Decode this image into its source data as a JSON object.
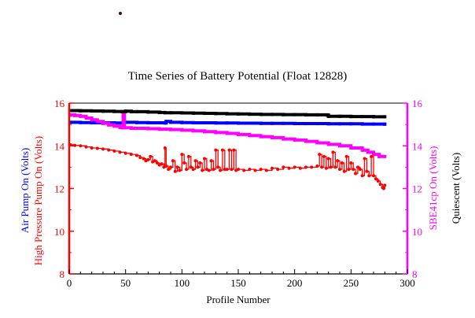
{
  "chart_data": {
    "type": "line",
    "title": "Time Series of Battery Potential (Float 12828)",
    "xlabel": "Profile Number",
    "xlim": [
      0,
      300
    ],
    "ylim": [
      8,
      16
    ],
    "x_ticks": [
      "0",
      "50",
      "100",
      "150",
      "200",
      "250",
      "300"
    ],
    "y_ticks": [
      "8",
      "10",
      "12",
      "14",
      "16"
    ],
    "left_axis_labels": [
      {
        "text": "Air Pump On (Volts)",
        "color": "#0000ff"
      },
      {
        "text": "High Pressure Pump On (Volts)",
        "color": "#ff0000"
      }
    ],
    "right_axis_labels": [
      {
        "text": "SBE41cp On (Volts)",
        "color": "#ff00ff"
      },
      {
        "text": "Quiescent (Volts)",
        "color": "#000000"
      }
    ],
    "axis_colors": {
      "left": "#ff0000",
      "right": "#ff00ff"
    },
    "grid": false,
    "series": [
      {
        "color": "#000000",
        "marker": "square",
        "points": [
          [
            1,
            15.65
          ],
          [
            10,
            15.64
          ],
          [
            20,
            15.63
          ],
          [
            30,
            15.62
          ],
          [
            40,
            15.61
          ],
          [
            47,
            15.6
          ],
          [
            50,
            15.62
          ],
          [
            55,
            15.6
          ],
          [
            60,
            15.6
          ],
          [
            70,
            15.58
          ],
          [
            80,
            15.56
          ],
          [
            85,
            15.55
          ],
          [
            90,
            15.55
          ],
          [
            100,
            15.54
          ],
          [
            110,
            15.53
          ],
          [
            120,
            15.52
          ],
          [
            130,
            15.51
          ],
          [
            140,
            15.5
          ],
          [
            150,
            15.49
          ],
          [
            160,
            15.48
          ],
          [
            170,
            15.47
          ],
          [
            180,
            15.47
          ],
          [
            190,
            15.46
          ],
          [
            200,
            15.46
          ],
          [
            210,
            15.45
          ],
          [
            220,
            15.45
          ],
          [
            229,
            15.44
          ],
          [
            230,
            15.38
          ],
          [
            240,
            15.38
          ],
          [
            250,
            15.37
          ],
          [
            260,
            15.37
          ],
          [
            270,
            15.36
          ],
          [
            280,
            15.36
          ]
        ]
      },
      {
        "color": "#0000ff",
        "marker": "square",
        "points": [
          [
            1,
            15.1
          ],
          [
            10,
            15.09
          ],
          [
            20,
            15.08
          ],
          [
            30,
            15.08
          ],
          [
            40,
            15.07
          ],
          [
            47,
            15.07
          ],
          [
            48,
            15.4
          ],
          [
            49,
            15.1
          ],
          [
            50,
            15.1
          ],
          [
            60,
            15.09
          ],
          [
            70,
            15.08
          ],
          [
            80,
            15.08
          ],
          [
            85,
            15.07
          ],
          [
            86,
            15.14
          ],
          [
            90,
            15.1
          ],
          [
            100,
            15.09
          ],
          [
            110,
            15.08
          ],
          [
            120,
            15.08
          ],
          [
            130,
            15.07
          ],
          [
            140,
            15.07
          ],
          [
            150,
            15.06
          ],
          [
            160,
            15.06
          ],
          [
            170,
            15.05
          ],
          [
            180,
            15.05
          ],
          [
            190,
            15.05
          ],
          [
            200,
            15.04
          ],
          [
            210,
            15.04
          ],
          [
            220,
            15.04
          ],
          [
            230,
            15.03
          ],
          [
            240,
            15.03
          ],
          [
            250,
            15.03
          ],
          [
            260,
            15.02
          ],
          [
            270,
            15.02
          ],
          [
            280,
            15.01
          ]
        ]
      },
      {
        "color": "#ff00ff",
        "marker": "square",
        "points": [
          [
            1,
            15.45
          ],
          [
            5,
            15.42
          ],
          [
            10,
            15.38
          ],
          [
            15,
            15.3
          ],
          [
            20,
            15.22
          ],
          [
            25,
            15.14
          ],
          [
            30,
            15.05
          ],
          [
            35,
            14.98
          ],
          [
            40,
            14.92
          ],
          [
            45,
            14.86
          ],
          [
            47,
            14.85
          ],
          [
            48,
            15.45
          ],
          [
            49,
            14.85
          ],
          [
            55,
            14.82
          ],
          [
            60,
            14.82
          ],
          [
            70,
            14.8
          ],
          [
            80,
            14.78
          ],
          [
            90,
            14.76
          ],
          [
            100,
            14.73
          ],
          [
            110,
            14.7
          ],
          [
            120,
            14.66
          ],
          [
            130,
            14.62
          ],
          [
            140,
            14.58
          ],
          [
            150,
            14.53
          ],
          [
            160,
            14.48
          ],
          [
            170,
            14.43
          ],
          [
            180,
            14.38
          ],
          [
            190,
            14.32
          ],
          [
            200,
            14.27
          ],
          [
            210,
            14.21
          ],
          [
            220,
            14.14
          ],
          [
            230,
            14.07
          ],
          [
            240,
            14.0
          ],
          [
            250,
            13.9
          ],
          [
            260,
            13.8
          ],
          [
            265,
            13.7
          ],
          [
            270,
            13.6
          ],
          [
            275,
            13.5
          ],
          [
            280,
            13.5
          ]
        ]
      },
      {
        "color": "#ff0000",
        "marker": "circle",
        "points": [
          [
            1,
            14.05
          ],
          [
            5,
            14.02
          ],
          [
            10,
            14.0
          ],
          [
            15,
            13.95
          ],
          [
            20,
            13.9
          ],
          [
            25,
            13.88
          ],
          [
            30,
            13.85
          ],
          [
            35,
            13.8
          ],
          [
            40,
            13.75
          ],
          [
            45,
            13.7
          ],
          [
            50,
            13.65
          ],
          [
            55,
            13.6
          ],
          [
            60,
            13.55
          ],
          [
            63,
            13.45
          ],
          [
            66,
            13.4
          ],
          [
            68,
            13.3
          ],
          [
            70,
            13.35
          ],
          [
            72,
            13.5
          ],
          [
            74,
            13.25
          ],
          [
            76,
            13.3
          ],
          [
            78,
            13.2
          ],
          [
            80,
            13.1
          ],
          [
            82,
            13.15
          ],
          [
            84,
            13.0
          ],
          [
            85,
            13.9
          ],
          [
            86,
            13.05
          ],
          [
            88,
            12.9
          ],
          [
            90,
            13.0
          ],
          [
            92,
            13.3
          ],
          [
            94,
            12.8
          ],
          [
            96,
            13.0
          ],
          [
            98,
            12.85
          ],
          [
            100,
            13.6
          ],
          [
            102,
            13.2
          ],
          [
            104,
            12.9
          ],
          [
            106,
            13.5
          ],
          [
            108,
            13.0
          ],
          [
            110,
            12.9
          ],
          [
            112,
            13.3
          ],
          [
            114,
            13.0
          ],
          [
            116,
            13.2
          ],
          [
            118,
            12.85
          ],
          [
            120,
            13.4
          ],
          [
            122,
            12.9
          ],
          [
            124,
            12.85
          ],
          [
            126,
            13.3
          ],
          [
            128,
            12.9
          ],
          [
            130,
            13.8
          ],
          [
            132,
            13.0
          ],
          [
            134,
            12.85
          ],
          [
            136,
            13.8
          ],
          [
            138,
            12.9
          ],
          [
            140,
            12.9
          ],
          [
            142,
            13.8
          ],
          [
            144,
            12.9
          ],
          [
            146,
            13.8
          ],
          [
            148,
            12.85
          ],
          [
            150,
            12.9
          ],
          [
            155,
            12.85
          ],
          [
            160,
            12.9
          ],
          [
            165,
            12.85
          ],
          [
            170,
            12.9
          ],
          [
            175,
            12.85
          ],
          [
            180,
            12.95
          ],
          [
            185,
            12.9
          ],
          [
            190,
            13.0
          ],
          [
            195,
            12.95
          ],
          [
            200,
            13.0
          ],
          [
            205,
            12.95
          ],
          [
            210,
            13.0
          ],
          [
            215,
            13.0
          ],
          [
            220,
            13.05
          ],
          [
            222,
            13.6
          ],
          [
            224,
            13.0
          ],
          [
            226,
            13.5
          ],
          [
            228,
            12.95
          ],
          [
            230,
            13.4
          ],
          [
            232,
            13.0
          ],
          [
            234,
            13.7
          ],
          [
            236,
            13.0
          ],
          [
            238,
            13.3
          ],
          [
            240,
            12.9
          ],
          [
            242,
            13.2
          ],
          [
            244,
            12.8
          ],
          [
            246,
            13.5
          ],
          [
            248,
            12.9
          ],
          [
            250,
            13.2
          ],
          [
            252,
            12.9
          ],
          [
            254,
            12.7
          ],
          [
            256,
            13.0
          ],
          [
            258,
            12.9
          ],
          [
            260,
            12.6
          ],
          [
            262,
            13.4
          ],
          [
            264,
            12.8
          ],
          [
            266,
            12.6
          ],
          [
            268,
            13.5
          ],
          [
            270,
            12.6
          ],
          [
            272,
            12.45
          ],
          [
            274,
            12.35
          ],
          [
            276,
            12.2
          ],
          [
            278,
            12.05
          ],
          [
            279,
            12.0
          ],
          [
            280,
            12.15
          ]
        ]
      }
    ]
  }
}
